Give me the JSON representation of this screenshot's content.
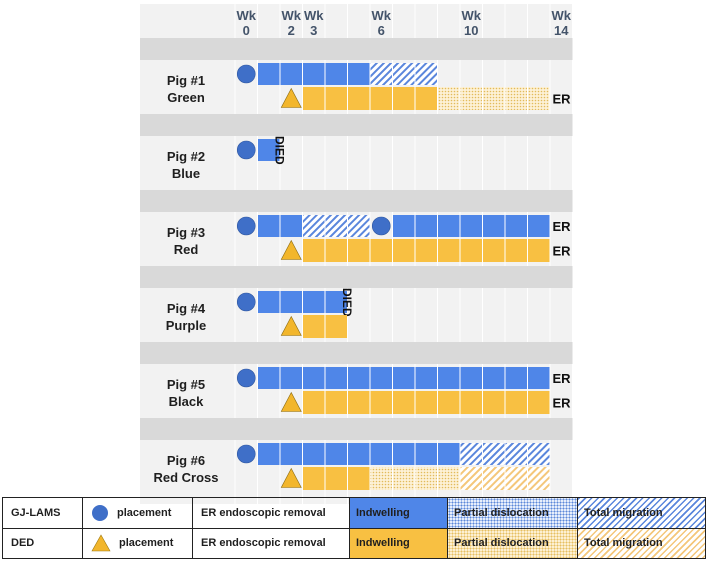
{
  "header": {
    "week_labels": [
      {
        "wk": "Wk",
        "num": "0",
        "col": 0
      },
      {
        "wk": "Wk",
        "num": "2",
        "col": 2
      },
      {
        "wk": "Wk",
        "num": "3",
        "col": 3
      },
      {
        "wk": "Wk",
        "num": "6",
        "col": 6
      },
      {
        "wk": "Wk",
        "num": "10",
        "col": 10
      },
      {
        "wk": "Wk",
        "num": "14",
        "col": 14
      }
    ]
  },
  "colors": {
    "blue": "#4f86e8",
    "orange": "#f8c042",
    "marker_blue": "#3f6fc8",
    "marker_orange": "#f2b62c",
    "band": "#d9d9d9",
    "row_bg": "#f2f2f2",
    "grid": "#ffffff"
  },
  "pigs": [
    {
      "name": "Pig #1",
      "color_name": "Green",
      "gj": {
        "placement_col": 0,
        "segments": [
          {
            "from": 1,
            "to": 6,
            "style": "indwelling"
          },
          {
            "from": 6,
            "to": 9,
            "style": "migration"
          }
        ],
        "end_label": "",
        "died_label": ""
      },
      "ded": {
        "placement_col": 2,
        "segments": [
          {
            "from": 3,
            "to": 9,
            "style": "indwelling"
          },
          {
            "from": 9,
            "to": 14,
            "style": "partial"
          }
        ],
        "end_label": "ER",
        "died_label": ""
      }
    },
    {
      "name": "Pig #2",
      "color_name": "Blue",
      "gj": {
        "placement_col": 0,
        "segments": [
          {
            "from": 1,
            "to": 2,
            "style": "indwelling"
          }
        ],
        "end_label": "",
        "died_label": "DIED",
        "died_col": 2
      },
      "ded": null
    },
    {
      "name": "Pig #3",
      "color_name": "Red",
      "gj": {
        "placement_col": 0,
        "extra_placement_col": 6,
        "segments": [
          {
            "from": 1,
            "to": 3,
            "style": "indwelling"
          },
          {
            "from": 3,
            "to": 6,
            "style": "migration"
          },
          {
            "from": 7,
            "to": 14,
            "style": "indwelling"
          }
        ],
        "end_label": "ER",
        "died_label": ""
      },
      "ded": {
        "placement_col": 2,
        "segments": [
          {
            "from": 3,
            "to": 14,
            "style": "indwelling"
          }
        ],
        "end_label": "ER",
        "died_label": ""
      }
    },
    {
      "name": "Pig #4",
      "color_name": "Purple",
      "gj": {
        "placement_col": 0,
        "segments": [
          {
            "from": 1,
            "to": 5,
            "style": "indwelling"
          }
        ],
        "end_label": "",
        "died_label": "DIED",
        "died_col": 5
      },
      "ded": {
        "placement_col": 2,
        "segments": [
          {
            "from": 3,
            "to": 5,
            "style": "indwelling"
          }
        ],
        "end_label": "",
        "died_label": ""
      }
    },
    {
      "name": "Pig #5",
      "color_name": "Black",
      "gj": {
        "placement_col": 0,
        "segments": [
          {
            "from": 1,
            "to": 14,
            "style": "indwelling"
          }
        ],
        "end_label": "ER",
        "died_label": ""
      },
      "ded": {
        "placement_col": 2,
        "segments": [
          {
            "from": 3,
            "to": 14,
            "style": "indwelling"
          }
        ],
        "end_label": "ER",
        "died_label": ""
      }
    },
    {
      "name": "Pig #6",
      "color_name": "Red Cross",
      "gj": {
        "placement_col": 0,
        "segments": [
          {
            "from": 1,
            "to": 10,
            "style": "indwelling"
          },
          {
            "from": 10,
            "to": 14,
            "style": "migration"
          }
        ],
        "end_label": "",
        "died_label": ""
      },
      "ded": {
        "placement_col": 2,
        "segments": [
          {
            "from": 3,
            "to": 6,
            "style": "indwelling"
          },
          {
            "from": 6,
            "to": 10,
            "style": "partial"
          },
          {
            "from": 10,
            "to": 14,
            "style": "migration"
          }
        ],
        "end_label": "",
        "died_label": ""
      }
    }
  ],
  "legend": {
    "rows": [
      {
        "device": "GJ-LAMS",
        "marker": "circle-icon",
        "placement": "placement",
        "removal": "ER endoscopic removal",
        "indwelling": "Indwelling",
        "partial": "Partial dislocation",
        "migration": "Total migration"
      },
      {
        "device": "DED",
        "marker": "triangle-icon",
        "placement": "placement",
        "removal": "ER endoscopic removal",
        "indwelling": "Indwelling",
        "partial": "Partial dislocation",
        "migration": "Total migration"
      }
    ]
  }
}
